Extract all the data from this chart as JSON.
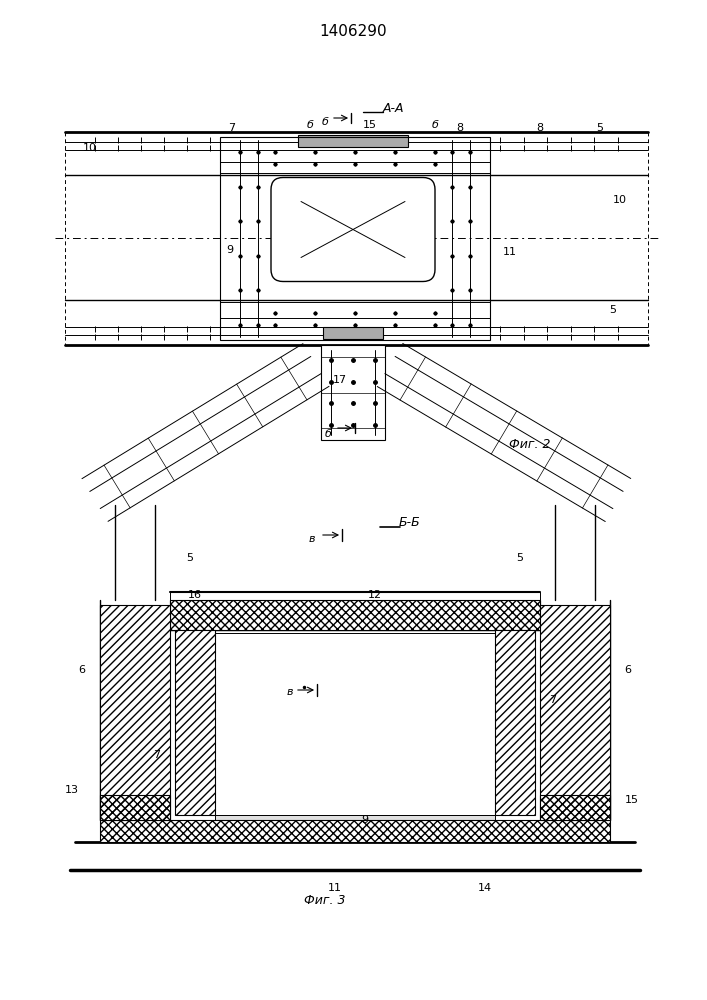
{
  "title": "1406290",
  "fig2_label": "Фиг. 2",
  "fig3_label": "Фиг. 3",
  "section_aa": "А-А",
  "section_bb": "Б-Б",
  "bg_color": "#ffffff",
  "line_color": "#000000"
}
